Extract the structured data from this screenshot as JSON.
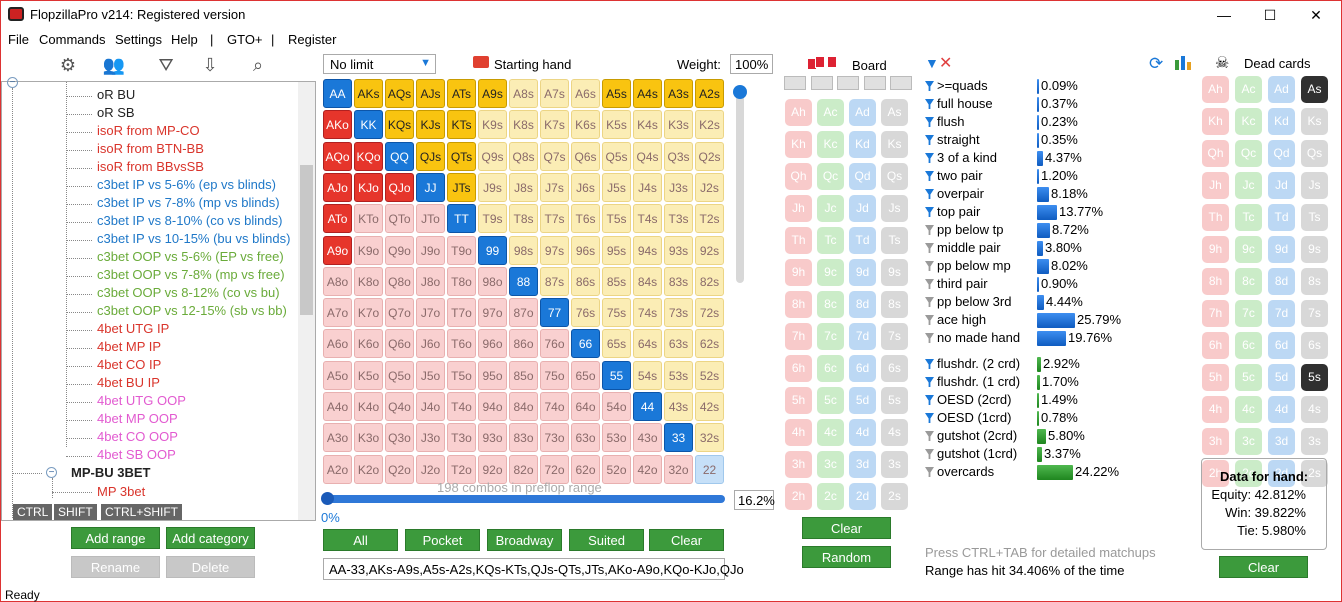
{
  "window": {
    "title": "FlopzillaPro v214: Registered version",
    "min": "—",
    "max": "☐",
    "close": "✕"
  },
  "menu": [
    "File",
    "Commands",
    "Settings",
    "Help",
    "|",
    "GTO+",
    "|",
    "Register"
  ],
  "toolbar_icons": [
    "gear-icon",
    "users-icon",
    "filter-add-icon",
    "import-icon",
    "search-icon"
  ],
  "tree": {
    "items": [
      {
        "label": "oR BU",
        "color": "#222"
      },
      {
        "label": "oR SB",
        "color": "#222"
      },
      {
        "label": "isoR from MP-CO",
        "color": "#d9342b"
      },
      {
        "label": "isoR from BTN-BB",
        "color": "#d9342b"
      },
      {
        "label": "isoR from BBvsSB",
        "color": "#d9342b"
      },
      {
        "label": "c3bet IP vs 5-6% (ep vs blinds)",
        "color": "#1f78c8"
      },
      {
        "label": "c3bet IP vs 7-8% (mp vs blinds)",
        "color": "#1f78c8"
      },
      {
        "label": "c3bet IP vs 8-10% (co vs blinds)",
        "color": "#1f78c8"
      },
      {
        "label": "c3bet IP vs 10-15% (bu vs blinds)",
        "color": "#1f78c8"
      },
      {
        "label": "c3bet OOP vs 5-6% (EP vs free)",
        "color": "#6aab3a"
      },
      {
        "label": "c3bet OOP vs 7-8% (mp vs free)",
        "color": "#6aab3a"
      },
      {
        "label": "c3bet OOP vs 8-12% (co vs bu)",
        "color": "#6aab3a"
      },
      {
        "label": "c3bet OOP vs 12-15% (sb vs bb)",
        "color": "#6aab3a"
      },
      {
        "label": "4bet UTG IP",
        "color": "#d9342b"
      },
      {
        "label": "4bet MP IP",
        "color": "#d9342b"
      },
      {
        "label": "4bet CO IP",
        "color": "#d9342b"
      },
      {
        "label": "4bet BU IP",
        "color": "#d9342b"
      },
      {
        "label": "4bet UTG OOP",
        "color": "#e25ad0"
      },
      {
        "label": "4bet MP OOP",
        "color": "#e25ad0"
      },
      {
        "label": "4bet CO OOP",
        "color": "#e25ad0"
      },
      {
        "label": "4bet SB OOP",
        "color": "#e25ad0"
      }
    ],
    "category": "MP-BU 3BET",
    "sub_item": "MP 3bet",
    "collapse_glyph": "−",
    "modifiers": [
      "CTRL",
      "SHIFT",
      "CTRL+SHIFT"
    ]
  },
  "tree_buttons": {
    "add_range": "Add range",
    "add_category": "Add category",
    "rename": "Rename",
    "delete": "Delete"
  },
  "range": {
    "game_type": "No limit",
    "starting_hand_label": "Starting hand",
    "weight_label": "Weight:",
    "weight_value": "100%",
    "ranks": [
      "A",
      "K",
      "Q",
      "J",
      "T",
      "9",
      "8",
      "7",
      "6",
      "5",
      "4",
      "3",
      "2"
    ],
    "selected": [
      "AA",
      "AKs",
      "AQs",
      "AJs",
      "ATs",
      "A9s",
      "A5s",
      "A4s",
      "A3s",
      "A2s",
      "AKo",
      "KK",
      "KQs",
      "KJs",
      "KTs",
      "AQo",
      "KQo",
      "QQ",
      "QJs",
      "QTs",
      "AJo",
      "KJo",
      "QJo",
      "JJ",
      "JTs",
      "ATo",
      "TT",
      "A9o",
      "99",
      "88",
      "77",
      "66",
      "55",
      "44",
      "33"
    ],
    "combos_text": "198 combos in preflop range",
    "progress_label": "0%",
    "percent_value": "16.2%",
    "progress_value": 0.162,
    "buttons": [
      "All",
      "Pocket",
      "Broadway",
      "Suited",
      "Clear"
    ],
    "range_text": "AA-33,AKs-A9s,A5s-A2s,KQs-KTs,QJs-QTs,JTs,AKo-A9o,KQo-KJo,QJo"
  },
  "board": {
    "label": "Board",
    "slots": 5,
    "clear": "Clear",
    "random": "Random"
  },
  "stats": {
    "made": [
      {
        "label": ">=quads",
        "value": "0.09%",
        "pct": 0.09,
        "f": "blue"
      },
      {
        "label": "full house",
        "value": "0.37%",
        "pct": 0.37,
        "f": "blue"
      },
      {
        "label": "flush",
        "value": "0.23%",
        "pct": 0.23,
        "f": "blue"
      },
      {
        "label": "straight",
        "value": "0.35%",
        "pct": 0.35,
        "f": "blue"
      },
      {
        "label": "3 of a kind",
        "value": "4.37%",
        "pct": 4.37,
        "f": "blue"
      },
      {
        "label": "two pair",
        "value": "1.20%",
        "pct": 1.2,
        "f": "blue"
      },
      {
        "label": "overpair",
        "value": "8.18%",
        "pct": 8.18,
        "f": "blue"
      },
      {
        "label": "top pair",
        "value": "13.77%",
        "pct": 13.77,
        "f": "blue"
      },
      {
        "label": "pp below tp",
        "value": "8.72%",
        "pct": 8.72,
        "f": "grey"
      },
      {
        "label": "middle pair",
        "value": "3.80%",
        "pct": 3.8,
        "f": "grey"
      },
      {
        "label": "pp below mp",
        "value": "8.02%",
        "pct": 8.02,
        "f": "grey"
      },
      {
        "label": "third pair",
        "value": "0.90%",
        "pct": 0.9,
        "f": "grey"
      },
      {
        "label": "pp below 3rd",
        "value": "4.44%",
        "pct": 4.44,
        "f": "grey"
      },
      {
        "label": "ace high",
        "value": "25.79%",
        "pct": 25.79,
        "f": "grey"
      },
      {
        "label": "no made hand",
        "value": "19.76%",
        "pct": 19.76,
        "f": "grey"
      }
    ],
    "draws": [
      {
        "label": "flushdr. (2 crd)",
        "value": "2.92%",
        "pct": 2.92,
        "f": "blue"
      },
      {
        "label": "flushdr. (1 crd)",
        "value": "1.70%",
        "pct": 1.7,
        "f": "blue"
      },
      {
        "label": "OESD (2crd)",
        "value": "1.49%",
        "pct": 1.49,
        "f": "blue"
      },
      {
        "label": "OESD (1crd)",
        "value": "0.78%",
        "pct": 0.78,
        "f": "blue"
      },
      {
        "label": "gutshot (2crd)",
        "value": "5.80%",
        "pct": 5.8,
        "f": "grey"
      },
      {
        "label": "gutshot (1crd)",
        "value": "3.37%",
        "pct": 3.37,
        "f": "grey"
      },
      {
        "label": "overcards",
        "value": "24.22%",
        "pct": 24.22,
        "f": "grey"
      }
    ],
    "hint": "Press CTRL+TAB for detailed matchups",
    "hit_text": "Range has hit 34.406% of the time"
  },
  "dead": {
    "label": "Dead cards",
    "clear": "Clear",
    "dead_cards": [
      "As",
      "5s"
    ]
  },
  "hand_data": {
    "title": "Data for hand:",
    "equity": "Equity: 42.812%",
    "win": "Win: 39.822%",
    "tie": "Tie: 5.980%"
  },
  "status": "Ready"
}
